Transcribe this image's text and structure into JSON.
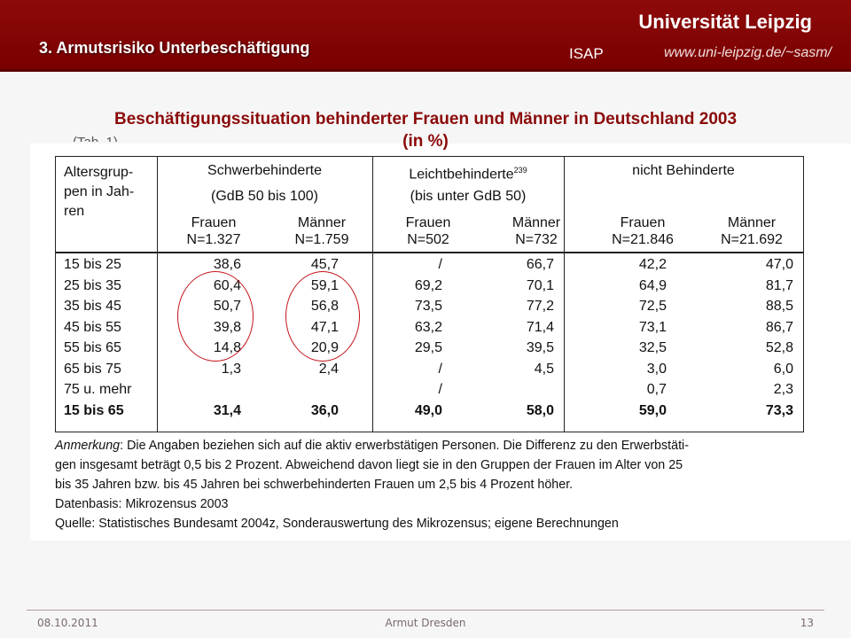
{
  "header": {
    "section_title": "3. Armutsrisiko Unterbeschäftigung",
    "university": "Universität Leipzig",
    "institute": "ISAP",
    "url": "www.uni-leipzig.de/~sasm/"
  },
  "slide": {
    "title_line1": "Beschäftigungssituation behinderter Frauen und Männer in Deutschland 2003",
    "title_line2": "(in %)",
    "partial_text": "(Tab. 1)"
  },
  "table": {
    "age_header": [
      "Altersgrup-",
      "pen in Jah-",
      "ren"
    ],
    "groups": [
      {
        "name": "Schwerbehinderte",
        "sub": "(GdB 50 bis 100)",
        "sup": ""
      },
      {
        "name": "Leichtbehinderte",
        "sub": "(bis unter GdB 50)",
        "sup": "239"
      },
      {
        "name": "nicht Behinderte",
        "sub": "",
        "sup": ""
      }
    ],
    "columns": [
      {
        "label": "Frauen",
        "n": "N=1.327"
      },
      {
        "label": "Männer",
        "n": "N=1.759"
      },
      {
        "label": "Frauen",
        "n": "N=502"
      },
      {
        "label": "Männer",
        "n": "N=732"
      },
      {
        "label": "Frauen",
        "n": "N=21.846"
      },
      {
        "label": "Männer",
        "n": "N=21.692"
      }
    ],
    "rows": [
      {
        "age": "15 bis 25",
        "values": [
          "38,6",
          "45,7",
          "/",
          "66,7",
          "42,2",
          "47,0"
        ]
      },
      {
        "age": "25 bis 35",
        "values": [
          "60,4",
          "59,1",
          "69,2",
          "70,1",
          "64,9",
          "81,7"
        ]
      },
      {
        "age": "35 bis 45",
        "values": [
          "50,7",
          "56,8",
          "73,5",
          "77,2",
          "72,5",
          "88,5"
        ]
      },
      {
        "age": "45 bis 55",
        "values": [
          "39,8",
          "47,1",
          "63,2",
          "71,4",
          "73,1",
          "86,7"
        ]
      },
      {
        "age": "55 bis 65",
        "values": [
          "14,8",
          "20,9",
          "29,5",
          "39,5",
          "32,5",
          "52,8"
        ]
      },
      {
        "age": "65 bis 75",
        "values": [
          "1,3",
          "2,4",
          "/",
          "4,5",
          "3,0",
          "6,0"
        ]
      },
      {
        "age": "75 u. mehr",
        "values": [
          "",
          "",
          "/",
          "",
          "0,7",
          "2,3"
        ]
      }
    ],
    "total": {
      "age": "15 bis 65",
      "values": [
        "31,4",
        "36,0",
        "49,0",
        "58,0",
        "59,0",
        "73,3"
      ]
    }
  },
  "notes": {
    "remark_label": "Anmerkung",
    "remark_line1": ": Die Angaben beziehen sich auf die aktiv erwerbstätigen Personen. Die Differenz zu den Erwerbstäti-",
    "remark_line2": "gen insgesamt beträgt 0,5 bis 2 Prozent. Abweichend davon liegt sie in den Gruppen der Frauen im Alter von 25",
    "remark_line3": "bis 35 Jahren bzw. bis 45 Jahren bei schwerbehinderten Frauen um 2,5 bis 4 Prozent höher.",
    "database": "Datenbasis: Mikrozensus 2003",
    "source": "Quelle: Statistisches Bundesamt 2004z, Sonderauswertung des Mikrozensus; eigene Berechnungen"
  },
  "footer": {
    "date": "08.10.2011",
    "author": "Armut Dresden",
    "page": "13"
  },
  "colors": {
    "brand": "#8b0a0a",
    "annotation_circle": "#c4141a"
  }
}
